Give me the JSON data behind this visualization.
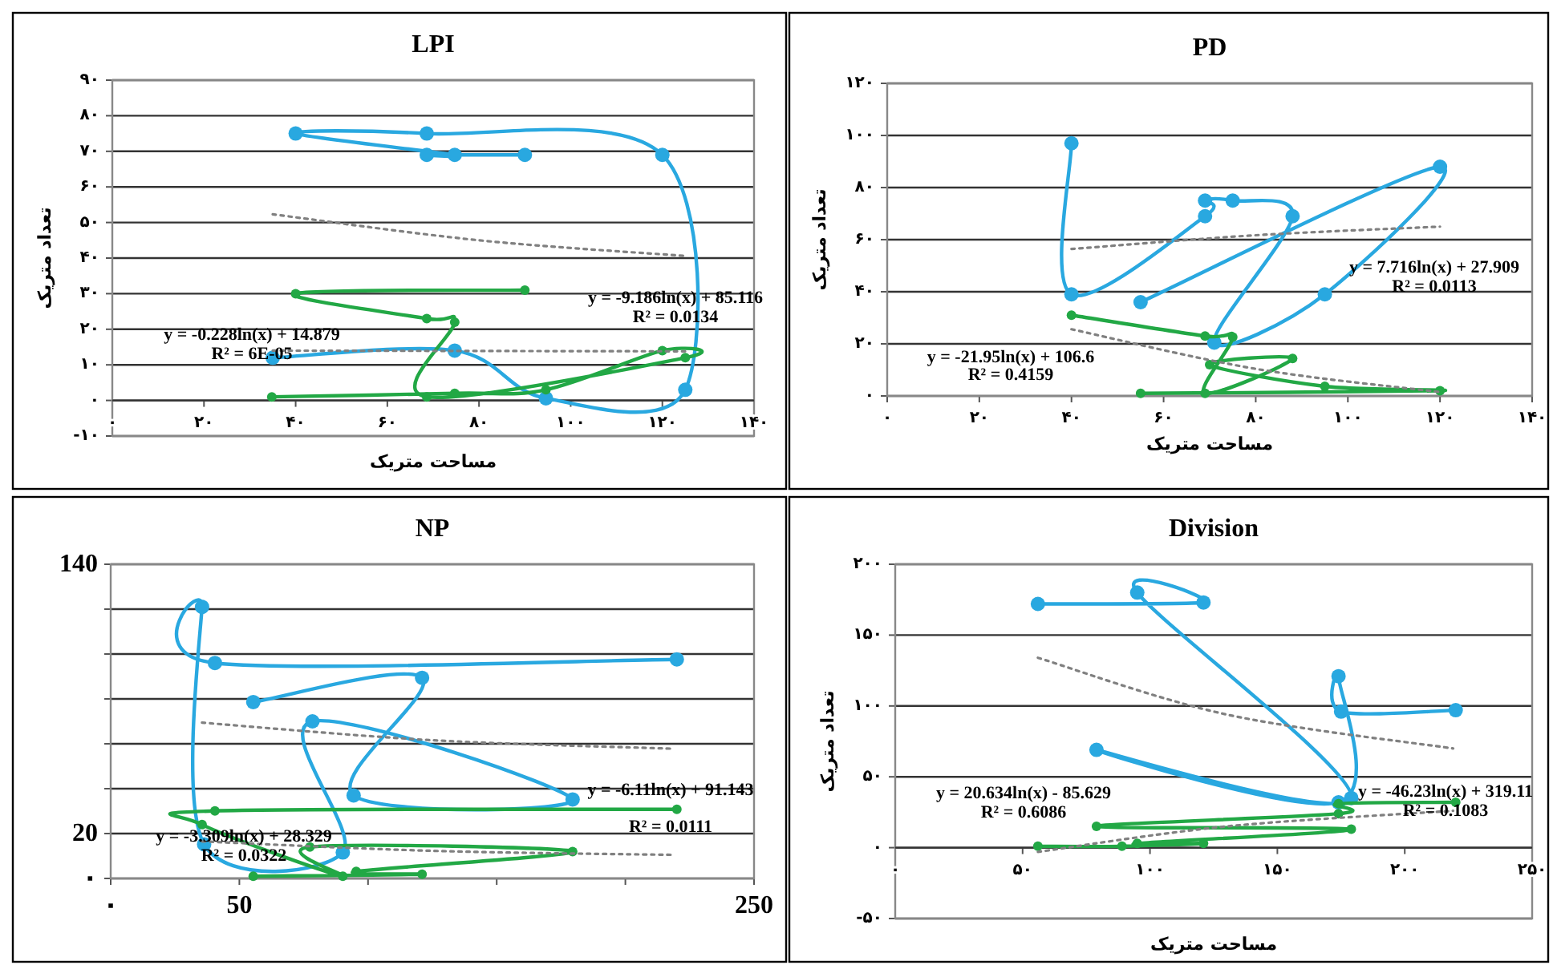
{
  "chart_data": [
    {
      "type": "line",
      "title": "LPI",
      "xlabel": "مساحت متریک",
      "ylabel": "تعداد متریک",
      "xlim": [
        0,
        140
      ],
      "ylim": [
        -10,
        90
      ],
      "xticks": [
        {
          "value": 0,
          "label": "۰"
        },
        {
          "value": 20,
          "label": "۲۰"
        },
        {
          "value": 40,
          "label": "۴۰"
        },
        {
          "value": 60,
          "label": "۶۰"
        },
        {
          "value": 80,
          "label": "۸۰"
        },
        {
          "value": 100,
          "label": "۱۰۰"
        },
        {
          "value": 120,
          "label": "۱۲۰"
        },
        {
          "value": 140,
          "label": "۱۴۰"
        }
      ],
      "yticks": [
        {
          "value": -10,
          "label": "-۱۰"
        },
        {
          "value": 0,
          "label": "۰"
        },
        {
          "value": 10,
          "label": "۱۰"
        },
        {
          "value": 20,
          "label": "۲۰"
        },
        {
          "value": 30,
          "label": "۳۰"
        },
        {
          "value": 40,
          "label": "۴۰"
        },
        {
          "value": 50,
          "label": "۵۰"
        },
        {
          "value": 60,
          "label": "۶۰"
        },
        {
          "value": 70,
          "label": "۷۰"
        },
        {
          "value": 80,
          "label": "۸۰"
        },
        {
          "value": 90,
          "label": "۹۰"
        }
      ],
      "grid": "y",
      "marker": "circle",
      "line_style": "solid",
      "series": [
        {
          "color": "#29a8e0",
          "x": [
            90,
            68.6,
            74.7,
            40,
            68.6,
            120,
            125,
            94.6,
            74.7,
            35
          ],
          "values": [
            69,
            69,
            69,
            75,
            75,
            69,
            3,
            0.6,
            14,
            12
          ]
        },
        {
          "color": "#22a845",
          "x": [
            90,
            40,
            68.6,
            74.7,
            68.6,
            125,
            120,
            94.6,
            74.7,
            34.8
          ],
          "values": [
            31,
            30,
            23,
            22,
            1,
            12,
            14,
            3,
            2,
            1
          ]
        },
        {
          "type": "line",
          "color": "#808080",
          "marker": "none",
          "line_style": "dotted",
          "x": [
            35,
            80,
            125
          ],
          "values": [
            52.3,
            45,
            40.6
          ]
        },
        {
          "type": "line",
          "color": "#808080",
          "marker": "none",
          "line_style": "dotted",
          "x": [
            35,
            80,
            125
          ],
          "values": [
            14,
            13.9,
            13.8
          ]
        }
      ],
      "annotations": [
        "y = -9.186ln(x) + 85.116",
        "R² = 0.0134",
        "y = -0.228ln(x) + 14.879",
        "R² = 6E-05"
      ]
    },
    {
      "type": "line",
      "title": "PD",
      "xlabel": "مساحت متریک",
      "ylabel": "تعداد متریک",
      "xlim": [
        0,
        140
      ],
      "ylim": [
        0,
        120
      ],
      "xticks": [
        {
          "value": 0,
          "label": "۰"
        },
        {
          "value": 20,
          "label": "۲۰"
        },
        {
          "value": 40,
          "label": "۴۰"
        },
        {
          "value": 60,
          "label": "۶۰"
        },
        {
          "value": 80,
          "label": "۸۰"
        },
        {
          "value": 100,
          "label": "۱۰۰"
        },
        {
          "value": 120,
          "label": "۱۲۰"
        },
        {
          "value": 140,
          "label": "۱۴۰"
        }
      ],
      "yticks": [
        {
          "value": 0,
          "label": "۰"
        },
        {
          "value": 20,
          "label": "۲۰"
        },
        {
          "value": 40,
          "label": "۴۰"
        },
        {
          "value": 60,
          "label": "۶۰"
        },
        {
          "value": 80,
          "label": "۸۰"
        },
        {
          "value": 100,
          "label": "۱۰۰"
        },
        {
          "value": 120,
          "label": "۱۲۰"
        }
      ],
      "grid": "y",
      "marker": "circle",
      "line_style": "solid",
      "series": [
        {
          "color": "#29a8e0",
          "x": [
            40,
            40,
            69,
            69,
            75,
            88,
            71,
            95,
            120,
            55
          ],
          "values": [
            97,
            39,
            69,
            75,
            75,
            69,
            20.5,
            39,
            88,
            36
          ]
        },
        {
          "color": "#22a845",
          "x": [
            40,
            69,
            75,
            69,
            88,
            70,
            95,
            120,
            55
          ],
          "values": [
            31,
            23,
            22.6,
            1,
            14.4,
            12,
            3.7,
            2,
            1
          ]
        },
        {
          "type": "line",
          "color": "#808080",
          "marker": "none",
          "line_style": "dotted",
          "x": [
            40,
            80,
            120
          ],
          "values": [
            56.4,
            61.7,
            65
          ]
        },
        {
          "type": "line",
          "color": "#808080",
          "marker": "none",
          "line_style": "dotted",
          "x": [
            40,
            80,
            120
          ],
          "values": [
            25.6,
            10.4,
            1.5
          ]
        }
      ],
      "annotations": [
        "y = 7.716ln(x) + 27.909",
        "R² = 0.0113",
        "y = -21.95ln(x) + 106.6",
        "R² = 0.4159"
      ]
    },
    {
      "type": "line",
      "title": "NP",
      "xlim": [
        0,
        250
      ],
      "ylim": [
        0,
        140
      ],
      "xticks": [
        {
          "value": 0,
          "label": "۰"
        },
        50,
        {
          "value": 100,
          "label": null
        },
        {
          "value": 150,
          "label": null
        },
        {
          "value": 200,
          "label": null
        },
        250
      ],
      "yticks": [
        {
          "value": 0,
          "label": "۰"
        },
        20,
        {
          "value": 40,
          "label": null
        },
        {
          "value": 60,
          "label": null
        },
        {
          "value": 80,
          "label": null
        },
        {
          "value": 100,
          "label": null
        },
        {
          "value": 120,
          "label": null
        },
        140
      ],
      "grid": "y",
      "marker": "circle",
      "line_style": "solid",
      "series": [
        {
          "color": "#29a8e0",
          "x": [
            55.4,
            121,
            94.4,
            179.5,
            78.4,
            90.2,
            36.3,
            35.5,
            40.5,
            220
          ],
          "values": [
            78.6,
            89.4,
            37,
            35.2,
            70,
            11.6,
            15.2,
            121,
            96,
            97.6
          ]
        },
        {
          "color": "#22a845",
          "x": [
            220,
            40.5,
            35.5,
            90.2,
            77.4,
            179.5,
            95.4,
            121,
            55.4
          ],
          "values": [
            30.8,
            30.1,
            24,
            1,
            14,
            12,
            3.1,
            1.9,
            1
          ]
        },
        {
          "type": "line",
          "color": "#808080",
          "marker": "none",
          "line_style": "dotted",
          "x": [
            35.5,
            125,
            219
          ],
          "values": [
            69.4,
            61.6,
            57.8
          ]
        },
        {
          "type": "line",
          "color": "#808080",
          "marker": "none",
          "line_style": "dotted",
          "x": [
            35.5,
            125,
            219
          ],
          "values": [
            16.5,
            12.3,
            10.5
          ]
        }
      ],
      "annotations": [
        "y = -6.11ln(x) + 91.143",
        "R² = 0.0111",
        "y = -3.309ln(x) + 28.329",
        "R² = 0.0322"
      ]
    },
    {
      "type": "line",
      "title": "Division",
      "xlabel": "مساحت متریک",
      "ylabel": "تعداد متریک",
      "xlim": [
        0,
        250
      ],
      "ylim": [
        -50,
        200
      ],
      "xticks": [
        {
          "value": 0,
          "label": "۰"
        },
        {
          "value": 50,
          "label": "۵۰"
        },
        {
          "value": 100,
          "label": "۱۰۰"
        },
        {
          "value": 150,
          "label": "۱۵۰"
        },
        {
          "value": 200,
          "label": "۲۰۰"
        },
        {
          "value": 250,
          "label": "۲۵۰"
        }
      ],
      "yticks": [
        {
          "value": -50,
          "label": "-۵۰"
        },
        {
          "value": 0,
          "label": "۰"
        },
        {
          "value": 50,
          "label": "۵۰"
        },
        {
          "value": 100,
          "label": "۱۰۰"
        },
        {
          "value": 150,
          "label": "۱۵۰"
        },
        {
          "value": 200,
          "label": "۲۰۰"
        }
      ],
      "grid": "y",
      "marker": "circle",
      "line_style": "solid",
      "series": [
        {
          "color": "#29a8e0",
          "x": [
            56,
            121,
            95,
            179,
            79,
            174,
            174,
            175,
            220
          ],
          "values": [
            172,
            173,
            180,
            35,
            69,
            32,
            121,
            96,
            97
          ]
        },
        {
          "color": "#22a845",
          "x": [
            220,
            174,
            174,
            79,
            179,
            95,
            121,
            89,
            56
          ],
          "values": [
            32,
            31,
            24,
            15,
            13,
            3,
            3,
            1,
            1
          ]
        },
        {
          "type": "line",
          "color": "#808080",
          "marker": "none",
          "line_style": "dotted",
          "x": [
            56,
            130,
            219
          ],
          "values": [
            134,
            94,
            70
          ]
        },
        {
          "type": "line",
          "color": "#808080",
          "marker": "none",
          "line_style": "dotted",
          "x": [
            56,
            130,
            219
          ],
          "values": [
            -3,
            15,
            26
          ]
        }
      ],
      "annotations": [
        "y = 20.634ln(x) - 85.629",
        "R² = 0.6086",
        "y = -46.23ln(x) + 319.11",
        "R² = 0.1083"
      ]
    }
  ]
}
